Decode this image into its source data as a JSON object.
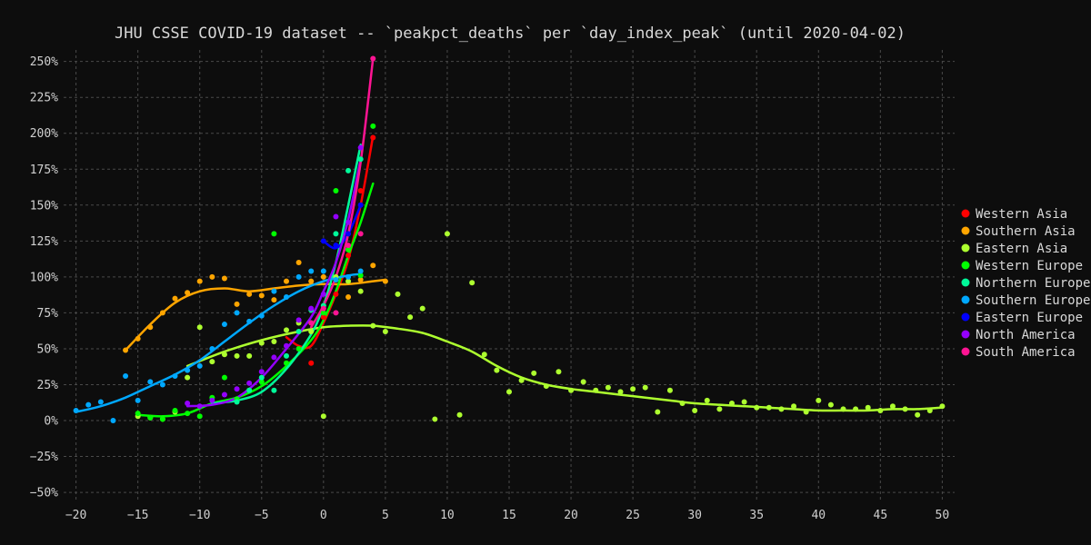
{
  "chart_data": {
    "type": "scatter",
    "title": "JHU CSSE COVID-19 dataset -- `peakpct_deaths` per `day_index_peak` (until 2020-04-02)",
    "xlabel": "",
    "ylabel": "",
    "xlim": [
      -21,
      51
    ],
    "ylim": [
      -55,
      258
    ],
    "xticks": [
      -20,
      -15,
      -10,
      -5,
      0,
      5,
      10,
      15,
      20,
      25,
      30,
      35,
      40,
      45,
      50
    ],
    "yticks": [
      -50,
      -25,
      0,
      25,
      50,
      75,
      100,
      125,
      150,
      175,
      200,
      225,
      250
    ],
    "ytick_format": "percent",
    "grid": true,
    "legend_position": "right",
    "series": [
      {
        "name": "Western Asia",
        "color": "#ff0000",
        "points": [
          [
            -1,
            40
          ],
          [
            0,
            72
          ],
          [
            1,
            88
          ],
          [
            2,
            115
          ],
          [
            3,
            160
          ],
          [
            4,
            197
          ]
        ],
        "trend": [
          [
            -3,
            58
          ],
          [
            -2,
            52
          ],
          [
            -1,
            52
          ],
          [
            0,
            68
          ],
          [
            1,
            88
          ],
          [
            2,
            112
          ],
          [
            3,
            150
          ],
          [
            4,
            198
          ]
        ]
      },
      {
        "name": "Southern Asia",
        "color": "#ffa500",
        "points": [
          [
            -16,
            49
          ],
          [
            -15,
            57
          ],
          [
            -14,
            65
          ],
          [
            -13,
            75
          ],
          [
            -12,
            85
          ],
          [
            -11,
            89
          ],
          [
            -10,
            97
          ],
          [
            -9,
            100
          ],
          [
            -8,
            99
          ],
          [
            -7,
            81
          ],
          [
            -6,
            88
          ],
          [
            -5,
            87
          ],
          [
            -4,
            84
          ],
          [
            -3,
            97
          ],
          [
            -2,
            110
          ],
          [
            -1,
            97
          ],
          [
            0,
            100
          ],
          [
            1,
            98
          ],
          [
            2,
            86
          ],
          [
            3,
            98
          ],
          [
            4,
            108
          ],
          [
            5,
            97
          ]
        ],
        "trend": [
          [
            -16,
            49
          ],
          [
            -14,
            67
          ],
          [
            -12,
            82
          ],
          [
            -10,
            90
          ],
          [
            -8,
            92
          ],
          [
            -6,
            90
          ],
          [
            -4,
            92
          ],
          [
            -2,
            94
          ],
          [
            0,
            95
          ],
          [
            2,
            95
          ],
          [
            4,
            97
          ],
          [
            5,
            98
          ]
        ]
      },
      {
        "name": "Eastern Asia",
        "color": "#adff2f",
        "points": [
          [
            -15,
            3
          ],
          [
            -14,
            2
          ],
          [
            -13,
            1
          ],
          [
            -12,
            6
          ],
          [
            -11,
            30
          ],
          [
            -10,
            65
          ],
          [
            -9,
            41
          ],
          [
            -8,
            46
          ],
          [
            -7,
            45
          ],
          [
            -6,
            45
          ],
          [
            -5,
            54
          ],
          [
            -4,
            55
          ],
          [
            -3,
            63
          ],
          [
            -2,
            68
          ],
          [
            -1,
            62
          ],
          [
            0,
            3
          ],
          [
            1,
            100
          ],
          [
            2,
            97
          ],
          [
            3,
            90
          ],
          [
            4,
            66
          ],
          [
            5,
            62
          ],
          [
            6,
            88
          ],
          [
            7,
            72
          ],
          [
            8,
            78
          ],
          [
            9,
            1
          ],
          [
            10,
            130
          ],
          [
            11,
            4
          ],
          [
            12,
            96
          ],
          [
            13,
            46
          ],
          [
            14,
            35
          ],
          [
            15,
            20
          ],
          [
            16,
            28
          ],
          [
            17,
            33
          ],
          [
            18,
            24
          ],
          [
            19,
            34
          ],
          [
            20,
            21
          ],
          [
            21,
            27
          ],
          [
            22,
            21
          ],
          [
            23,
            23
          ],
          [
            24,
            20
          ],
          [
            25,
            22
          ],
          [
            26,
            23
          ],
          [
            27,
            6
          ],
          [
            28,
            21
          ],
          [
            29,
            12
          ],
          [
            30,
            7
          ],
          [
            31,
            14
          ],
          [
            32,
            8
          ],
          [
            33,
            12
          ],
          [
            34,
            13
          ],
          [
            35,
            9
          ],
          [
            36,
            9
          ],
          [
            37,
            8
          ],
          [
            38,
            10
          ],
          [
            39,
            6
          ],
          [
            40,
            14
          ],
          [
            41,
            11
          ],
          [
            42,
            8
          ],
          [
            43,
            8
          ],
          [
            44,
            9
          ],
          [
            45,
            7
          ],
          [
            46,
            10
          ],
          [
            47,
            8
          ],
          [
            48,
            4
          ],
          [
            49,
            7
          ],
          [
            50,
            10
          ]
        ],
        "trend": [
          [
            -11,
            38
          ],
          [
            -8,
            48
          ],
          [
            -5,
            56
          ],
          [
            -2,
            62
          ],
          [
            0,
            65
          ],
          [
            2,
            66
          ],
          [
            4,
            66
          ],
          [
            6,
            64
          ],
          [
            8,
            61
          ],
          [
            10,
            55
          ],
          [
            12,
            48
          ],
          [
            14,
            38
          ],
          [
            16,
            30
          ],
          [
            18,
            25
          ],
          [
            20,
            22
          ],
          [
            22,
            20
          ],
          [
            24,
            18
          ],
          [
            26,
            16
          ],
          [
            28,
            14
          ],
          [
            30,
            12
          ],
          [
            32,
            11
          ],
          [
            34,
            10
          ],
          [
            36,
            9
          ],
          [
            38,
            8
          ],
          [
            40,
            7
          ],
          [
            42,
            7
          ],
          [
            44,
            7
          ],
          [
            46,
            8
          ],
          [
            48,
            8
          ],
          [
            50,
            9
          ]
        ]
      },
      {
        "name": "Western Europe",
        "color": "#00ff00",
        "points": [
          [
            -15,
            5
          ],
          [
            -14,
            2
          ],
          [
            -13,
            1
          ],
          [
            -12,
            7
          ],
          [
            -11,
            5
          ],
          [
            -10,
            3
          ],
          [
            -9,
            16
          ],
          [
            -8,
            30
          ],
          [
            -7,
            15
          ],
          [
            -6,
            21
          ],
          [
            -5,
            27
          ],
          [
            -4,
            130
          ],
          [
            -3,
            40
          ],
          [
            -2,
            50
          ],
          [
            -1,
            68
          ],
          [
            0,
            75
          ],
          [
            1,
            160
          ],
          [
            2,
            119
          ],
          [
            3,
            101
          ],
          [
            4,
            205
          ]
        ],
        "trend": [
          [
            -15,
            4
          ],
          [
            -13,
            3
          ],
          [
            -11,
            5
          ],
          [
            -9,
            12
          ],
          [
            -7,
            16
          ],
          [
            -5,
            24
          ],
          [
            -3,
            38
          ],
          [
            -1,
            56
          ],
          [
            0,
            70
          ],
          [
            1,
            90
          ],
          [
            2,
            115
          ],
          [
            3,
            138
          ],
          [
            4,
            165
          ]
        ]
      },
      {
        "name": "Northern Europe",
        "color": "#00fa9a",
        "points": [
          [
            -7,
            13
          ],
          [
            -6,
            21
          ],
          [
            -5,
            30
          ],
          [
            -4,
            21
          ],
          [
            -3,
            45
          ],
          [
            -2,
            62
          ],
          [
            -1,
            77
          ],
          [
            0,
            80
          ],
          [
            1,
            130
          ],
          [
            2,
            174
          ],
          [
            3,
            182
          ]
        ],
        "trend": [
          [
            -9,
            12
          ],
          [
            -7,
            14
          ],
          [
            -5,
            20
          ],
          [
            -3,
            36
          ],
          [
            -1,
            60
          ],
          [
            0,
            80
          ],
          [
            1,
            110
          ],
          [
            2,
            150
          ],
          [
            3,
            192
          ]
        ]
      },
      {
        "name": "Southern Europe",
        "color": "#00a8ff",
        "points": [
          [
            -20,
            7
          ],
          [
            -19,
            11
          ],
          [
            -18,
            13
          ],
          [
            -17,
            0
          ],
          [
            -16,
            31
          ],
          [
            -15,
            14
          ],
          [
            -14,
            27
          ],
          [
            -13,
            25
          ],
          [
            -12,
            31
          ],
          [
            -11,
            35
          ],
          [
            -10,
            38
          ],
          [
            -9,
            50
          ],
          [
            -8,
            67
          ],
          [
            -7,
            75
          ],
          [
            -6,
            69
          ],
          [
            -5,
            73
          ],
          [
            -4,
            90
          ],
          [
            -3,
            86
          ],
          [
            -2,
            100
          ],
          [
            -1,
            104
          ],
          [
            0,
            104
          ],
          [
            1,
            98
          ],
          [
            2,
            100
          ],
          [
            3,
            104
          ]
        ],
        "trend": [
          [
            -20,
            6
          ],
          [
            -18,
            10
          ],
          [
            -16,
            16
          ],
          [
            -14,
            24
          ],
          [
            -12,
            32
          ],
          [
            -10,
            42
          ],
          [
            -8,
            55
          ],
          [
            -6,
            68
          ],
          [
            -4,
            80
          ],
          [
            -2,
            90
          ],
          [
            0,
            97
          ],
          [
            2,
            101
          ],
          [
            3,
            102
          ]
        ]
      },
      {
        "name": "Eastern Europe",
        "color": "#0000ff",
        "points": [
          [
            0,
            125
          ],
          [
            1,
            122
          ],
          [
            2,
            130
          ],
          [
            3,
            150
          ]
        ],
        "trend": [
          [
            0,
            125
          ],
          [
            1,
            120
          ],
          [
            2,
            130
          ],
          [
            3,
            150
          ]
        ]
      },
      {
        "name": "North America",
        "color": "#9400ff",
        "points": [
          [
            -11,
            12
          ],
          [
            -10,
            10
          ],
          [
            -9,
            14
          ],
          [
            -8,
            18
          ],
          [
            -7,
            22
          ],
          [
            -6,
            26
          ],
          [
            -5,
            34
          ],
          [
            -4,
            44
          ],
          [
            -3,
            52
          ],
          [
            -2,
            70
          ],
          [
            -1,
            78
          ],
          [
            0,
            88
          ],
          [
            1,
            142
          ],
          [
            2,
            138
          ],
          [
            3,
            190
          ]
        ],
        "trend": [
          [
            -11,
            10
          ],
          [
            -9,
            11
          ],
          [
            -7,
            16
          ],
          [
            -5,
            30
          ],
          [
            -3,
            50
          ],
          [
            -1,
            72
          ],
          [
            0,
            90
          ],
          [
            1,
            110
          ],
          [
            2,
            140
          ],
          [
            3,
            182
          ]
        ]
      },
      {
        "name": "South America",
        "color": "#ff1493",
        "points": [
          [
            -1,
            68
          ],
          [
            0,
            78
          ],
          [
            1,
            75
          ],
          [
            2,
            122
          ],
          [
            3,
            130
          ],
          [
            4,
            252
          ]
        ],
        "trend": [
          [
            -1,
            65
          ],
          [
            0,
            80
          ],
          [
            1,
            100
          ],
          [
            2,
            130
          ],
          [
            3,
            180
          ],
          [
            4,
            252
          ]
        ]
      }
    ]
  }
}
